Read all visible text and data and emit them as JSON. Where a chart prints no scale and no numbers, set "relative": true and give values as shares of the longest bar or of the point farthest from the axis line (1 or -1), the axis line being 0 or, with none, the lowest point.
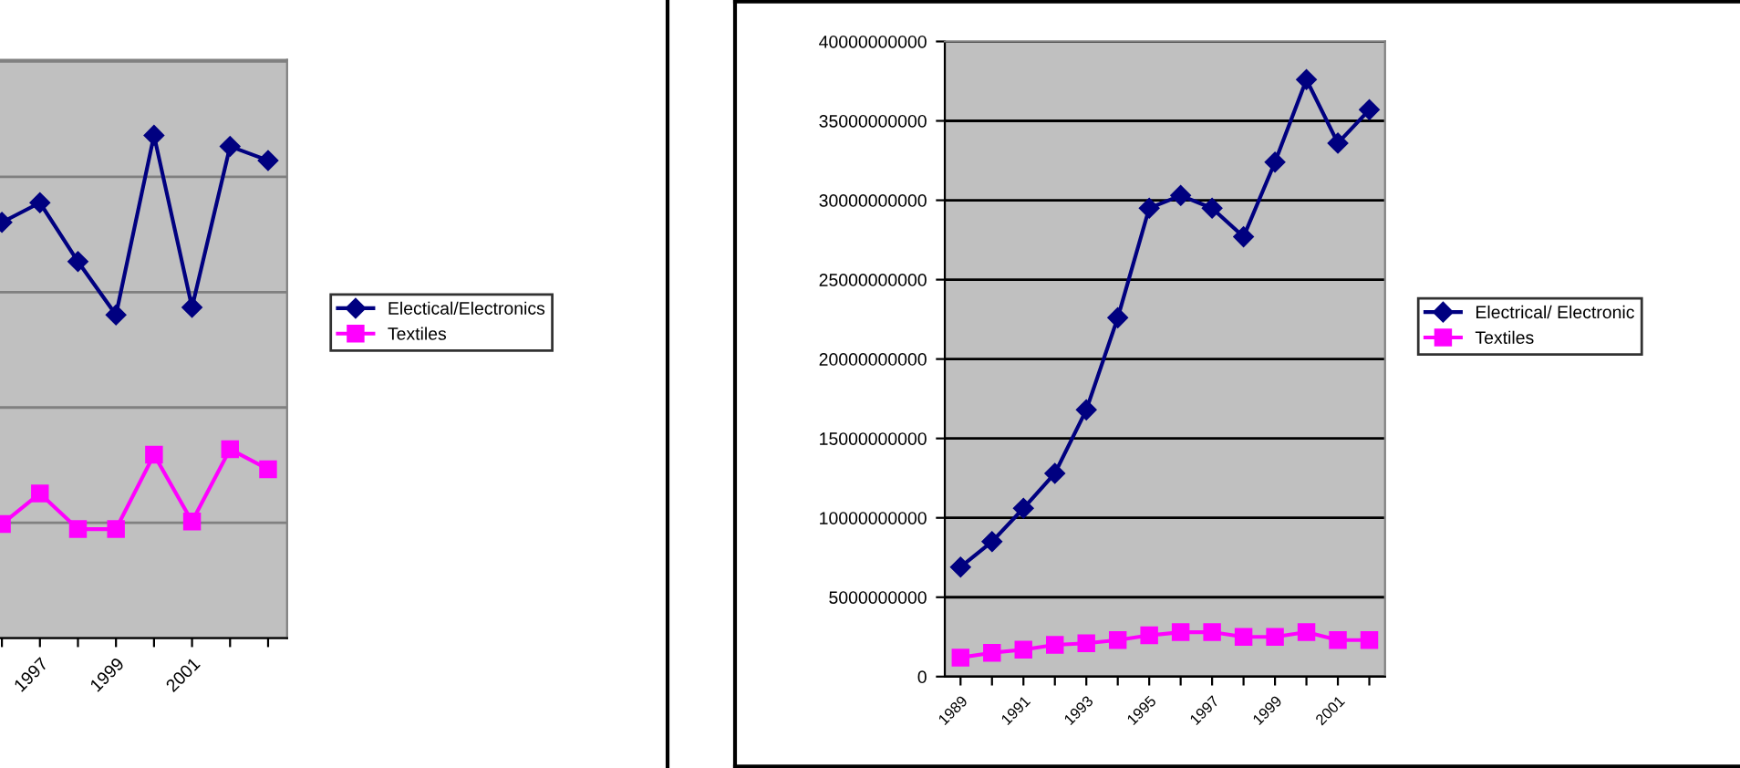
{
  "chart_data": [
    {
      "type": "line",
      "relative": true,
      "categories": [
        null,
        "1997",
        null,
        "1999",
        null,
        "2001",
        null,
        null
      ],
      "grid": "y",
      "legend": "right",
      "series": [
        {
          "name": "Electical/Electronics",
          "color": "#000080",
          "marker": "diamond",
          "values": [
            0.827,
            0.866,
            0.749,
            0.643,
            1.0,
            0.658,
            0.978,
            0.95
          ]
        },
        {
          "name": "Textiles",
          "color": "#ff00ff",
          "marker": "square",
          "values": [
            0.227,
            0.288,
            0.217,
            0.217,
            0.365,
            0.232,
            0.376,
            0.336
          ]
        }
      ]
    },
    {
      "type": "line",
      "categories": [
        "1989",
        null,
        "1991",
        null,
        "1993",
        null,
        "1995",
        null,
        "1997",
        null,
        "1999",
        null,
        "2001",
        null
      ],
      "grid": "y",
      "legend": "right",
      "ylim": [
        0,
        40000000000
      ],
      "yticks": [
        0,
        5000000000,
        10000000000,
        15000000000,
        20000000000,
        25000000000,
        30000000000,
        35000000000,
        40000000000
      ],
      "series": [
        {
          "name": "Electrical/ Electronic",
          "color": "#000080",
          "marker": "diamond",
          "values": [
            6900000000,
            8500000000,
            10600000000,
            12800000000,
            16800000000,
            22600000000,
            29500000000,
            30300000000,
            29500000000,
            27700000000,
            32400000000,
            37600000000,
            33600000000,
            35700000000
          ]
        },
        {
          "name": "Textiles",
          "color": "#ff00ff",
          "marker": "square",
          "values": [
            1200000000,
            1500000000,
            1700000000,
            2000000000,
            2100000000,
            2300000000,
            2600000000,
            2800000000,
            2800000000,
            2500000000,
            2500000000,
            2800000000,
            2300000000,
            2300000000
          ]
        }
      ]
    }
  ]
}
